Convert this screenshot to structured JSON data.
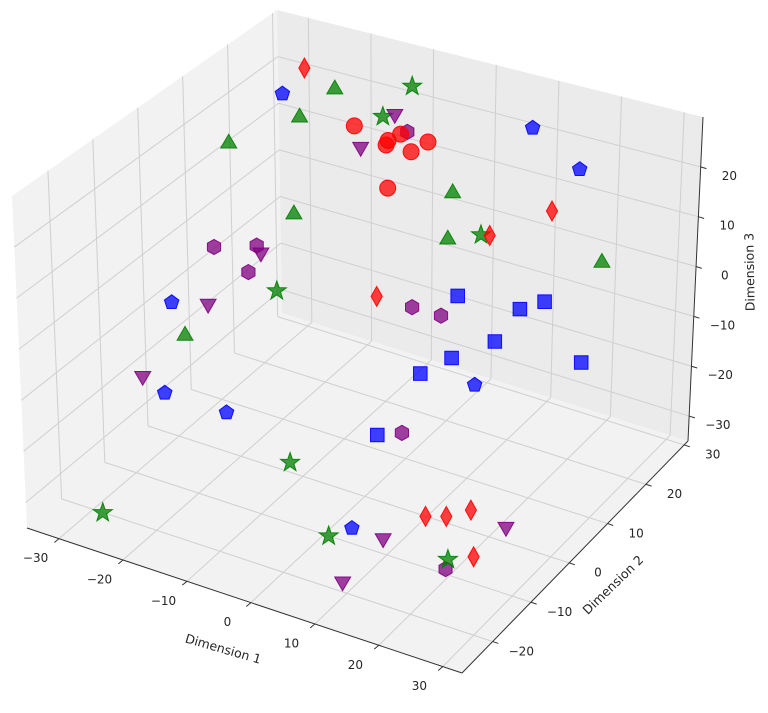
{
  "chart_data": {
    "type": "scatter",
    "projection": "3d",
    "title": "",
    "xlabel": "Dimension 1",
    "ylabel": "Dimension 2",
    "zlabel": "Dimension 3",
    "xticks": [
      -30,
      -20,
      -10,
      0,
      10,
      20,
      30
    ],
    "yticks": [
      -20,
      -10,
      0,
      10,
      20,
      30
    ],
    "zticks": [
      -30,
      -20,
      -10,
      0,
      10,
      20
    ],
    "tick_labels": {
      "x": [
        "−30",
        "−20",
        "−10",
        "0",
        "10",
        "20",
        "30"
      ],
      "y": [
        "−20",
        "−10",
        "0",
        "10",
        "20",
        "30"
      ],
      "z": [
        "−30",
        "−20",
        "−10",
        "0",
        "10",
        "20"
      ]
    },
    "xlim": [
      -35,
      33
    ],
    "ylim": [
      -28,
      31
    ],
    "zlim": [
      -35,
      30
    ],
    "grid": true,
    "legend": "none",
    "series": [
      {
        "marker": "circle",
        "color": "#ff0000",
        "points": [
          [
            -15,
            20,
            20
          ],
          [
            -11,
            22,
            17
          ],
          [
            -9,
            22,
            19
          ],
          [
            -6,
            24,
            17
          ],
          [
            -12,
            23,
            15
          ],
          [
            -8,
            23,
            15
          ],
          [
            -9,
            19,
            10
          ]
        ]
      },
      {
        "marker": "diamond",
        "color": "#ff0000",
        "points": [
          [
            -30,
            30,
            20
          ],
          [
            23,
            10,
            23
          ],
          [
            10,
            15,
            10
          ],
          [
            -6,
            12,
            -6
          ],
          [
            27,
            -22,
            -12
          ],
          [
            24,
            -11,
            -20
          ],
          [
            30,
            -20,
            -20
          ],
          [
            13,
            -5,
            -30
          ]
        ]
      },
      {
        "marker": "triangle-down",
        "color": "#800080",
        "points": [
          [
            -12,
            25,
            20
          ],
          [
            -14,
            20,
            16
          ],
          [
            -26,
            14,
            -6
          ],
          [
            -29,
            6,
            -12
          ],
          [
            -32,
            -5,
            -20
          ],
          [
            12,
            -14,
            -28
          ],
          [
            24,
            -2,
            -30
          ],
          [
            10,
            -21,
            -32
          ]
        ]
      },
      {
        "marker": "hexagon",
        "color": "#800080",
        "points": [
          [
            -25,
            2,
            4
          ],
          [
            -21,
            6,
            3
          ],
          [
            -21,
            4,
            -1
          ],
          [
            3,
            14,
            -8
          ],
          [
            -3,
            16,
            -10
          ],
          [
            6,
            0,
            -20
          ],
          [
            20,
            -11,
            -33
          ],
          [
            -10,
            25,
            17
          ]
        ]
      },
      {
        "marker": "triangle",
        "color": "#008000",
        "points": [
          [
            -33,
            17,
            12
          ],
          [
            -28,
            26,
            13
          ],
          [
            -23,
            27,
            20
          ],
          [
            -22,
            16,
            2
          ],
          [
            -4,
            27,
            5
          ],
          [
            0,
            20,
            2
          ],
          [
            26,
            18,
            8
          ],
          [
            -30,
            2,
            -16
          ]
        ]
      },
      {
        "marker": "star",
        "color": "#008000",
        "points": [
          [
            -12,
            29,
            23
          ],
          [
            -16,
            28,
            16
          ],
          [
            2,
            25,
            0
          ],
          [
            -20,
            9,
            -8
          ],
          [
            -10,
            -3,
            -30
          ],
          [
            4,
            -15,
            -30
          ],
          [
            21,
            -12,
            -30
          ],
          [
            -25,
            -25,
            -30
          ]
        ]
      },
      {
        "marker": "square",
        "color": "#0000ff",
        "points": [
          [
            5,
            15,
            -4
          ],
          [
            15,
            15,
            -3
          ],
          [
            17,
            18,
            -3
          ],
          [
            13,
            12,
            -8
          ],
          [
            25,
            15,
            -10
          ],
          [
            5,
            6,
            -13
          ],
          [
            10,
            6,
            -8
          ],
          [
            6,
            -6,
            -16
          ]
        ]
      },
      {
        "marker": "pentagon",
        "color": "#0000ff",
        "points": [
          [
            -30,
            25,
            18
          ],
          [
            6,
            31,
            19
          ],
          [
            15,
            29,
            15
          ],
          [
            15,
            4,
            -10
          ],
          [
            -32,
            2,
            -10
          ],
          [
            -25,
            -10,
            -17
          ],
          [
            -18,
            -6,
            -21
          ],
          [
            9,
            -17,
            -25
          ]
        ]
      }
    ]
  }
}
